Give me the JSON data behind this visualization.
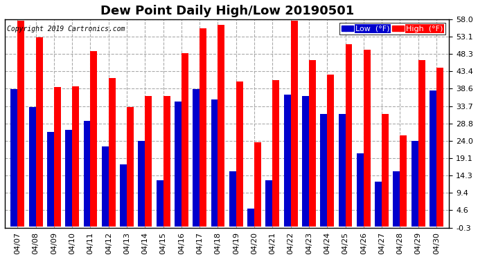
{
  "title": "Dew Point Daily High/Low 20190501",
  "copyright": "Copyright 2019 Cartronics.com",
  "dates": [
    "04/07",
    "04/08",
    "04/09",
    "04/10",
    "04/11",
    "04/12",
    "04/13",
    "04/14",
    "04/15",
    "04/16",
    "04/17",
    "04/18",
    "04/19",
    "04/20",
    "04/21",
    "04/22",
    "04/23",
    "04/24",
    "04/25",
    "04/26",
    "04/27",
    "04/28",
    "04/29",
    "04/30"
  ],
  "high": [
    57.5,
    53.0,
    39.0,
    39.2,
    49.0,
    41.5,
    33.5,
    36.5,
    36.5,
    48.5,
    55.5,
    56.5,
    40.5,
    23.5,
    41.0,
    57.5,
    46.5,
    42.5,
    51.0,
    49.5,
    31.5,
    25.5,
    46.5,
    44.5
  ],
  "low": [
    38.5,
    33.5,
    26.5,
    27.0,
    29.5,
    22.5,
    17.5,
    24.0,
    13.0,
    35.0,
    38.5,
    35.5,
    15.5,
    5.0,
    13.0,
    37.0,
    36.5,
    31.5,
    31.5,
    20.5,
    12.5,
    15.5,
    24.0,
    38.0
  ],
  "ylim": [
    -0.3,
    58.0
  ],
  "ytick_values": [
    -0.3,
    4.6,
    9.4,
    14.3,
    19.1,
    24.0,
    28.8,
    33.7,
    38.6,
    43.4,
    48.3,
    53.1,
    58.0
  ],
  "ytick_labels": [
    "-0.3",
    "4.6",
    "9.4",
    "14.3",
    "19.1",
    "24.0",
    "28.8",
    "33.7",
    "38.6",
    "43.4",
    "48.3",
    "53.1",
    "58.0"
  ],
  "bar_width": 0.38,
  "high_color": "#ff0000",
  "low_color": "#0000cc",
  "bg_color": "#ffffff",
  "grid_color": "#aaaaaa",
  "title_fontsize": 13,
  "tick_fontsize": 8,
  "copyright_fontsize": 7,
  "legend_low_label": "Low  (°F)",
  "legend_high_label": "High  (°F)"
}
